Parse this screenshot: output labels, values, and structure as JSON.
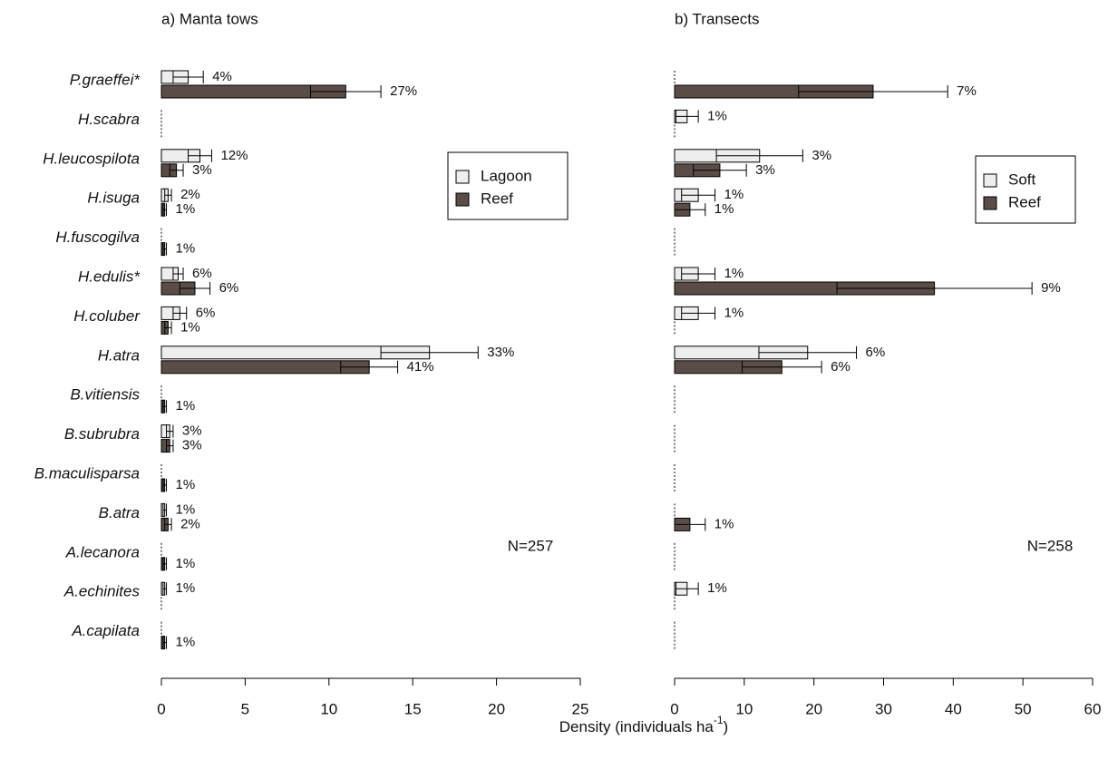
{
  "chart_data": [
    {
      "type": "bar",
      "orientation": "horizontal",
      "title": "a) Manta tows",
      "categories": [
        "P.graeffei*",
        "H.scabra",
        "H.leucospilota",
        "H.isuga",
        "H.fuscogilva",
        "H.edulis*",
        "H.coluber",
        "H.atra",
        "B.vitiensis",
        "B.subrubra",
        "B.maculisparsa",
        "B.atra",
        "A.lecanora",
        "A.echinites",
        "A.capilata"
      ],
      "series": [
        {
          "name": "Lagoon",
          "color": "#eeeeee",
          "values": [
            1.6,
            0,
            2.3,
            0.4,
            0,
            1.0,
            1.1,
            16.0,
            0,
            0.5,
            0,
            0.2,
            0,
            0.2,
            0
          ],
          "errors": [
            0.9,
            0,
            0.7,
            0.2,
            0,
            0.3,
            0.4,
            2.9,
            0,
            0.2,
            0,
            0.1,
            0,
            0.1,
            0
          ],
          "pct_labels": [
            "4%",
            null,
            "12%",
            "2%",
            null,
            "6%",
            "6%",
            "33%",
            null,
            "3%",
            null,
            "1%",
            null,
            "1%",
            null
          ]
        },
        {
          "name": "Reef",
          "color": "#5a4d48",
          "values": [
            11.0,
            0,
            0.9,
            0.2,
            0.2,
            2.0,
            0.4,
            12.4,
            0.2,
            0.5,
            0.2,
            0.4,
            0.2,
            0,
            0.2
          ],
          "errors": [
            2.1,
            0,
            0.4,
            0.1,
            0.1,
            0.9,
            0.2,
            1.7,
            0.1,
            0.2,
            0.1,
            0.2,
            0.1,
            0,
            0.1
          ],
          "pct_labels": [
            "27%",
            null,
            "3%",
            "1%",
            "1%",
            "6%",
            "1%",
            "41%",
            "1%",
            "3%",
            "1%",
            "2%",
            "1%",
            null,
            "1%"
          ]
        }
      ],
      "xlim": [
        0,
        25
      ],
      "xticks": [
        0,
        5,
        10,
        15,
        20,
        25
      ],
      "legend": "upper right",
      "annotation": "N=257"
    },
    {
      "type": "bar",
      "orientation": "horizontal",
      "title": "b) Transects",
      "series": [
        {
          "name": "Soft",
          "color": "#eeeeee",
          "values": [
            0,
            1.8,
            12.2,
            3.4,
            0,
            3.4,
            3.4,
            19.1,
            0,
            0,
            0,
            0,
            0,
            1.8,
            0
          ],
          "errors": [
            0,
            1.6,
            6.2,
            2.4,
            0,
            2.4,
            2.4,
            7.0,
            0,
            0,
            0,
            0,
            0,
            1.6,
            0
          ],
          "pct_labels": [
            null,
            "1%",
            "3%",
            "1%",
            null,
            "1%",
            "1%",
            "6%",
            null,
            null,
            null,
            null,
            null,
            "1%",
            null
          ]
        },
        {
          "name": "Reef",
          "color": "#5a4d48",
          "values": [
            28.5,
            0,
            6.5,
            2.2,
            0,
            37.3,
            0,
            15.4,
            0,
            0,
            0,
            2.2,
            0,
            0,
            0
          ],
          "errors": [
            10.7,
            0,
            3.8,
            2.2,
            0,
            14.0,
            0,
            5.7,
            0,
            0,
            0,
            2.2,
            0,
            0,
            0
          ],
          "pct_labels": [
            "7%",
            null,
            "3%",
            "1%",
            null,
            "9%",
            null,
            "6%",
            null,
            null,
            null,
            "1%",
            null,
            null,
            null
          ]
        }
      ],
      "xlim": [
        0,
        60
      ],
      "xticks": [
        0,
        10,
        20,
        30,
        40,
        50,
        60
      ],
      "legend": "upper right",
      "annotation": "N=258"
    }
  ],
  "x_label": {
    "text": "Density (individuals ha",
    "superscript": "-1",
    "suffix": ")"
  }
}
